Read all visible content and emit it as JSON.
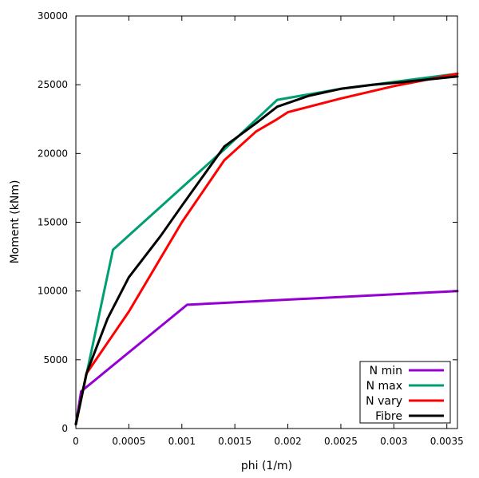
{
  "chart_data": {
    "type": "line",
    "title": "",
    "xlabel": "phi (1/m)",
    "ylabel": "Moment (kNm)",
    "xlim": [
      0,
      0.0036
    ],
    "ylim": [
      0,
      30000
    ],
    "xticks": [
      0,
      0.0005,
      0.001,
      0.0015,
      0.002,
      0.0025,
      0.003,
      0.0035
    ],
    "xtick_labels": [
      "0",
      "0.0005",
      "0.001",
      "0.0015",
      "0.002",
      "0.0025",
      "0.003",
      "0.0035"
    ],
    "yticks": [
      0,
      5000,
      10000,
      15000,
      20000,
      25000,
      30000
    ],
    "ytick_labels": [
      "0",
      "5000",
      "10000",
      "15000",
      "20000",
      "25000",
      "30000"
    ],
    "grid": false,
    "legend_position": "bottom-right",
    "series": [
      {
        "name": "N min",
        "color": "#9400d3",
        "x": [
          0,
          5e-05,
          0.00105,
          0.0036
        ],
        "y": [
          300,
          2700,
          9000,
          10000
        ]
      },
      {
        "name": "N max",
        "color": "#009e73",
        "x": [
          0,
          0.00035,
          0.0014,
          0.0019,
          0.0025,
          0.003,
          0.0036
        ],
        "y": [
          300,
          13000,
          20300,
          23900,
          24700,
          25200,
          25800
        ]
      },
      {
        "name": "N vary",
        "color": "#ff0000",
        "x": [
          0,
          0.0001,
          0.0005,
          0.001,
          0.0014,
          0.0017,
          0.0019,
          0.002,
          0.0025,
          0.003,
          0.0036
        ],
        "y": [
          300,
          4000,
          8500,
          15000,
          19500,
          21600,
          22500,
          23000,
          24000,
          24900,
          25800
        ]
      },
      {
        "name": "Fibre",
        "color": "#000000",
        "x": [
          0,
          0.0001,
          0.0003,
          0.0005,
          0.0008,
          0.001,
          0.0014,
          0.0017,
          0.0019,
          0.0022,
          0.0025,
          0.0028,
          0.0031,
          0.0036
        ],
        "y": [
          300,
          4000,
          8000,
          11000,
          14000,
          16200,
          20500,
          22200,
          23400,
          24200,
          24700,
          25000,
          25200,
          25600
        ]
      }
    ]
  }
}
